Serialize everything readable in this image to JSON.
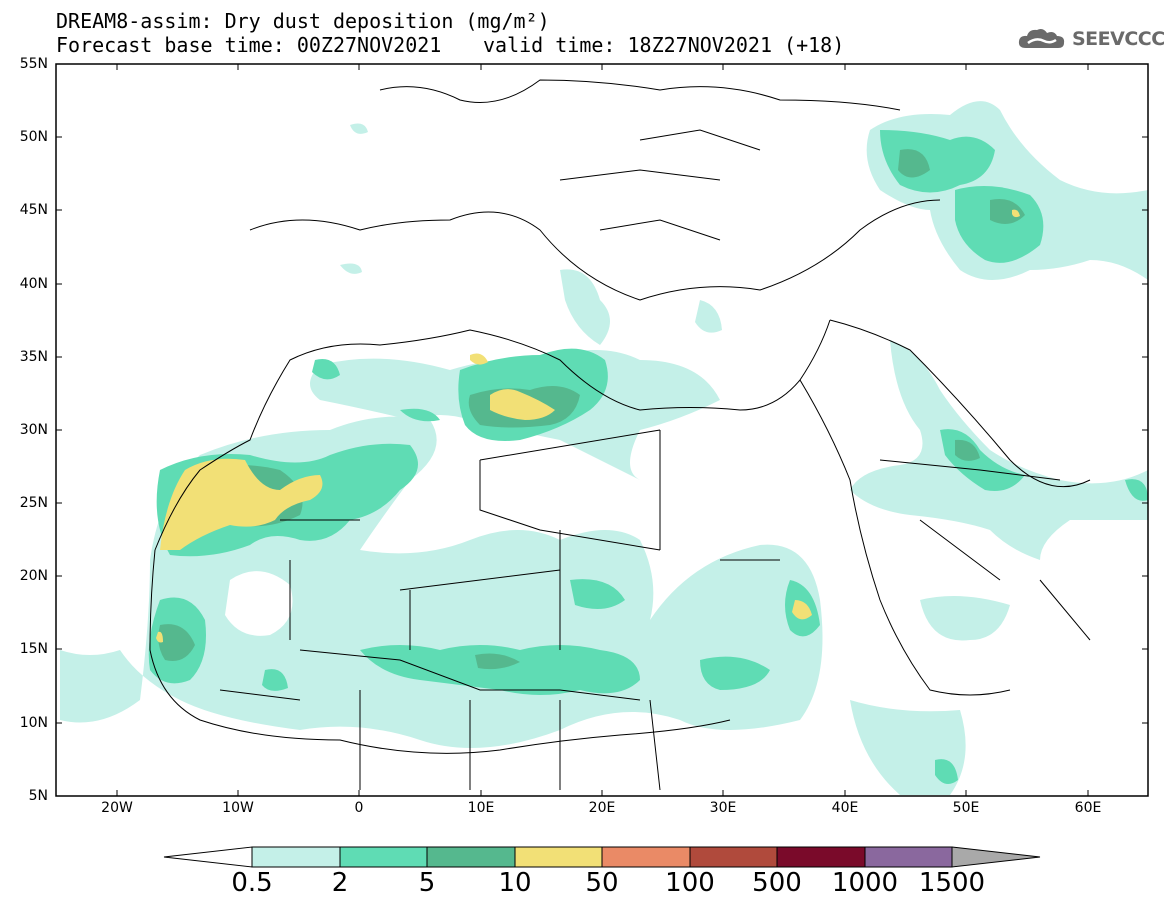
{
  "title": {
    "line1": "DREAM8-assim: Dry dust deposition (mg/m²)",
    "line2": "Forecast base time: 00Z27NOV2021",
    "valid": "valid time: 18Z27NOV2021 (+18)"
  },
  "logo": {
    "text": "SEEVCCC",
    "icon": "cloud-logo-icon"
  },
  "axes": {
    "lat_labels": [
      "55N",
      "50N",
      "45N",
      "40N",
      "35N",
      "30N",
      "25N",
      "20N",
      "15N",
      "10N",
      "5N"
    ],
    "lon_labels": [
      "20W",
      "10W",
      "0",
      "10E",
      "20E",
      "30E",
      "40E",
      "50E",
      "60E"
    ]
  },
  "legend": {
    "levels": [
      "0.5",
      "2",
      "5",
      "10",
      "50",
      "100",
      "500",
      "1000",
      "1500"
    ],
    "colors": [
      "#c4f0e8",
      "#5fdcb4",
      "#55b88e",
      "#f2e076",
      "#ea8a66",
      "#b04a3c",
      "#7a0a2a",
      "#8a689e",
      "#a9a9a9"
    ]
  }
}
